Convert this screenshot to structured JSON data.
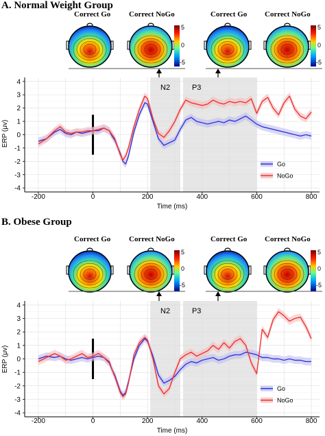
{
  "panels": [
    {
      "title": "A. Normal Weight Group",
      "topo_groups": [
        {
          "labels": [
            "Correct Go",
            "Correct NoGo"
          ],
          "colorbar_ticks": [
            "5",
            "0",
            "-5"
          ]
        },
        {
          "labels": [
            "Correct Go",
            "Correct NoGo"
          ],
          "colorbar_ticks": [
            "5",
            "0",
            "-5"
          ]
        }
      ],
      "windows": [
        "N2",
        "P3"
      ]
    },
    {
      "title": "B. Obese Group",
      "topo_groups": [
        {
          "labels": [
            "Correct Go",
            "Correct NoGo"
          ],
          "colorbar_ticks": [
            "5",
            "0",
            "-5"
          ]
        },
        {
          "labels": [
            "Correct Go",
            "Correct NoGo"
          ],
          "colorbar_ticks": [
            "5",
            "0",
            "-5"
          ]
        }
      ],
      "windows": [
        "N2",
        "P3"
      ]
    }
  ],
  "colors": {
    "go": "#3333dd",
    "nogo": "#ee3333",
    "go_band": "#b9b9ee",
    "nogo_band": "#f5b8b8",
    "window": "#e6e6e6"
  },
  "chart_data": [
    {
      "type": "line",
      "title": "A. Normal Weight Group",
      "xlabel": "Time (ms)",
      "ylabel": "ERP (μv)",
      "xlim": [
        -250,
        830
      ],
      "ylim": [
        -4.3,
        4.3
      ],
      "xticks": [
        -200,
        0,
        200,
        400,
        600,
        800
      ],
      "yticks": [
        -4,
        -3,
        -2,
        -1,
        0,
        1,
        2,
        3,
        4
      ],
      "grid": true,
      "legend": "bottom-right",
      "shaded_windows": [
        {
          "label": "N2",
          "range": [
            210,
            320
          ]
        },
        {
          "label": "P3",
          "range": [
            330,
            600
          ]
        }
      ],
      "series": [
        {
          "name": "Go",
          "x": [
            -200,
            -170,
            -140,
            -120,
            -100,
            -80,
            -60,
            -40,
            -20,
            0,
            20,
            40,
            60,
            70,
            80,
            100,
            110,
            120,
            130,
            150,
            170,
            190,
            200,
            220,
            240,
            260,
            280,
            300,
            320,
            340,
            360,
            380,
            400,
            420,
            440,
            460,
            480,
            500,
            520,
            540,
            560,
            580,
            600,
            620,
            640,
            660,
            680,
            700,
            720,
            740,
            760,
            780,
            800
          ],
          "values": [
            -0.5,
            -0.3,
            0.2,
            0.4,
            0.1,
            0.0,
            0.2,
            0.1,
            0.2,
            0.3,
            0.3,
            0.5,
            0.3,
            -0.1,
            -0.4,
            -1.4,
            -2.0,
            -2.2,
            -1.6,
            0.2,
            1.5,
            2.4,
            2.3,
            1.0,
            -0.3,
            -0.8,
            -0.6,
            -0.4,
            0.4,
            1.1,
            1.3,
            1.0,
            0.9,
            0.8,
            0.9,
            1.0,
            0.9,
            1.1,
            1.0,
            1.2,
            1.4,
            1.1,
            0.8,
            0.6,
            0.5,
            0.4,
            0.3,
            0.2,
            0.1,
            0.0,
            -0.1,
            0.0,
            -0.1
          ]
        },
        {
          "name": "NoGo",
          "x": [
            -200,
            -170,
            -140,
            -120,
            -100,
            -80,
            -60,
            -40,
            -20,
            0,
            20,
            40,
            60,
            70,
            80,
            100,
            110,
            120,
            130,
            150,
            170,
            190,
            200,
            220,
            240,
            260,
            280,
            300,
            320,
            340,
            360,
            380,
            400,
            420,
            440,
            460,
            480,
            500,
            520,
            540,
            560,
            580,
            600,
            620,
            640,
            660,
            680,
            700,
            720,
            740,
            760,
            780,
            800
          ],
          "values": [
            -0.7,
            -0.3,
            0.3,
            0.6,
            0.2,
            0.1,
            0.2,
            0.2,
            0.3,
            0.3,
            0.4,
            0.5,
            0.3,
            0.0,
            -0.3,
            -1.5,
            -1.9,
            -1.6,
            -1.0,
            0.6,
            1.9,
            2.9,
            2.7,
            1.2,
            0.1,
            -0.2,
            0.3,
            1.0,
            1.9,
            2.6,
            2.4,
            2.3,
            2.2,
            2.3,
            2.6,
            2.4,
            2.3,
            2.5,
            2.4,
            2.5,
            2.4,
            2.7,
            1.6,
            2.5,
            2.8,
            2.0,
            1.5,
            2.4,
            2.9,
            1.9,
            1.4,
            1.2,
            1.7
          ]
        }
      ]
    },
    {
      "type": "line",
      "title": "B. Obese Group",
      "xlabel": "Time (ms)",
      "ylabel": "ERP (μv)",
      "xlim": [
        -250,
        830
      ],
      "ylim": [
        -4.3,
        4.3
      ],
      "xticks": [
        -200,
        0,
        200,
        400,
        600,
        800
      ],
      "yticks": [
        -4,
        -3,
        -2,
        -1,
        0,
        1,
        2,
        3,
        4
      ],
      "grid": true,
      "legend": "bottom-right",
      "shaded_windows": [
        {
          "label": "N2",
          "range": [
            210,
            320
          ]
        },
        {
          "label": "P3",
          "range": [
            330,
            600
          ]
        }
      ],
      "series": [
        {
          "name": "Go",
          "x": [
            -200,
            -170,
            -140,
            -120,
            -100,
            -80,
            -60,
            -40,
            -20,
            0,
            20,
            40,
            60,
            70,
            80,
            100,
            110,
            120,
            130,
            150,
            170,
            190,
            200,
            220,
            240,
            260,
            280,
            300,
            320,
            340,
            360,
            380,
            400,
            420,
            440,
            460,
            480,
            500,
            520,
            540,
            560,
            580,
            600,
            620,
            640,
            660,
            680,
            700,
            720,
            740,
            760,
            780,
            800
          ],
          "values": [
            0.0,
            0.2,
            0.1,
            0.2,
            0.0,
            -0.1,
            0.0,
            0.1,
            0.0,
            0.1,
            0.2,
            0.1,
            -0.3,
            -0.8,
            -1.2,
            -2.4,
            -2.7,
            -2.5,
            -1.7,
            0.0,
            1.0,
            1.5,
            1.3,
            0.2,
            -1.2,
            -1.8,
            -1.6,
            -1.3,
            -0.8,
            -0.4,
            -0.2,
            -0.3,
            -0.1,
            0.0,
            0.1,
            -0.1,
            0.0,
            0.2,
            0.3,
            0.3,
            0.5,
            0.4,
            0.3,
            0.1,
            0.1,
            0.0,
            0.0,
            -0.1,
            0.0,
            -0.1,
            -0.1,
            -0.2,
            -0.2
          ]
        },
        {
          "name": "NoGo",
          "x": [
            -200,
            -170,
            -140,
            -120,
            -100,
            -80,
            -60,
            -40,
            -20,
            0,
            20,
            40,
            60,
            70,
            80,
            100,
            110,
            120,
            130,
            150,
            170,
            190,
            200,
            220,
            240,
            260,
            280,
            300,
            320,
            340,
            360,
            380,
            400,
            420,
            440,
            460,
            480,
            500,
            520,
            540,
            560,
            580,
            600,
            620,
            640,
            660,
            680,
            700,
            720,
            740,
            760,
            780,
            800
          ],
          "values": [
            -0.2,
            0.1,
            0.4,
            0.2,
            -0.1,
            0.0,
            0.2,
            0.4,
            0.1,
            0.2,
            0.4,
            0.1,
            -0.2,
            -0.8,
            -1.3,
            -2.5,
            -2.8,
            -2.6,
            -1.8,
            0.3,
            1.2,
            1.6,
            1.4,
            0.0,
            -2.0,
            -2.6,
            -2.2,
            -1.0,
            0.0,
            0.3,
            0.5,
            0.2,
            0.4,
            0.6,
            1.0,
            0.7,
            1.2,
            0.8,
            1.3,
            1.5,
            1.0,
            -0.3,
            -1.1,
            2.2,
            1.6,
            2.9,
            3.5,
            3.2,
            2.8,
            3.0,
            3.1,
            2.4,
            1.5
          ]
        }
      ]
    }
  ]
}
